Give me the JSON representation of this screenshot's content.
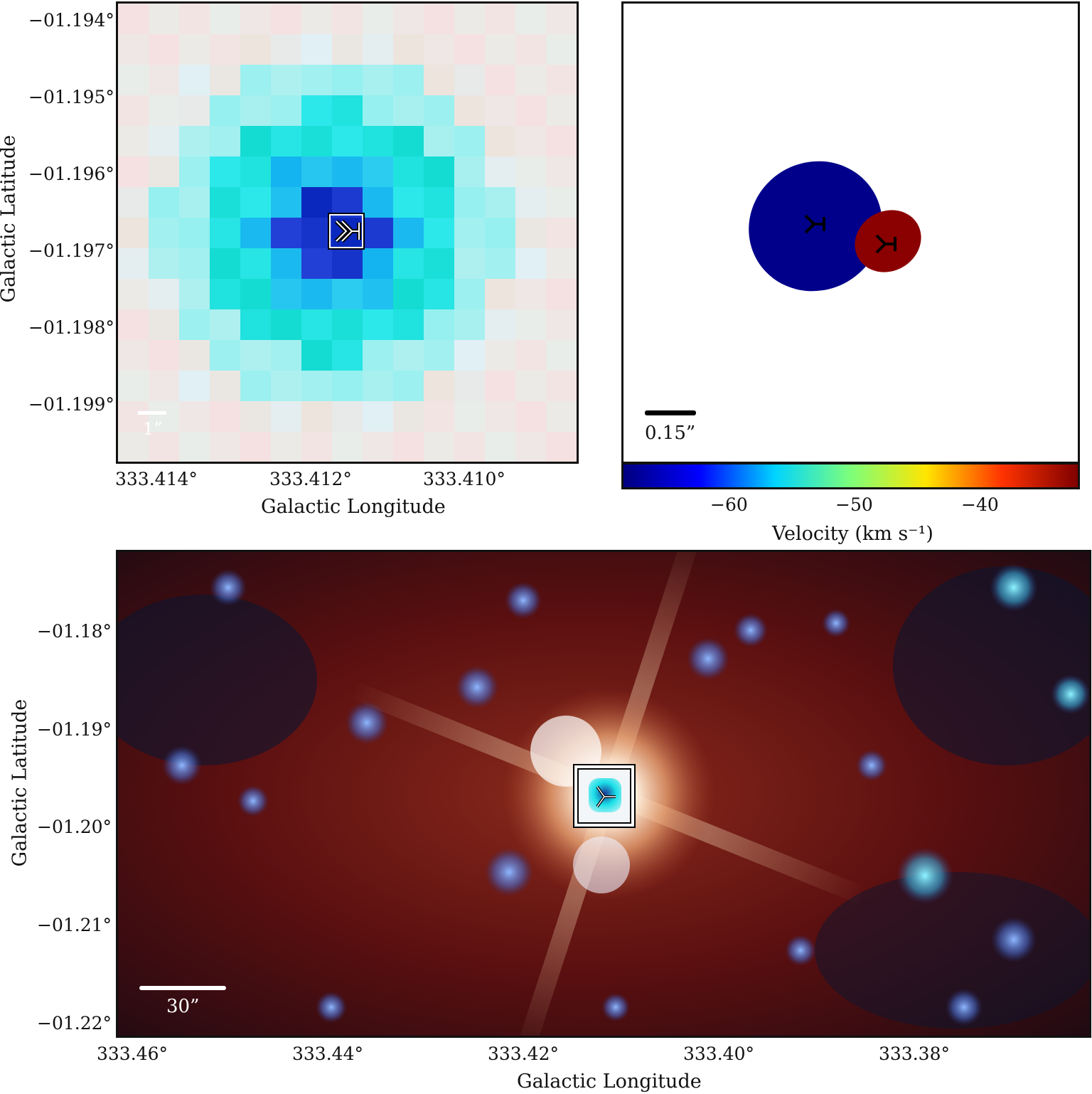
{
  "top_left": {
    "y_ticks": [
      "−01.194°",
      "−01.195°",
      "−01.196°",
      "−01.197°",
      "−01.198°",
      "−01.199°"
    ],
    "x_ticks": [
      "333.414°",
      "333.412°",
      "333.410°"
    ],
    "ylabel": "Galactic Latitude",
    "xlabel": "Galactic Longitude",
    "scale_bar": "1”"
  },
  "top_right": {
    "scale_bar": "0.15”",
    "colorbar": {
      "ticks": [
        "−60",
        "−50",
        "−40"
      ],
      "label": "Velocity (km s⁻¹)",
      "colors": [
        "#00007f",
        "#0000ff",
        "#00d4ff",
        "#7dff7a",
        "#ffe500",
        "#ff3300",
        "#7f0000"
      ]
    },
    "components": [
      {
        "velocity": -68,
        "color": "#00008b"
      },
      {
        "velocity": -37,
        "color": "#8b0000"
      }
    ]
  },
  "bottom": {
    "y_ticks": [
      "−01.18°",
      "−01.19°",
      "−01.20°",
      "−01.21°",
      "−01.22°"
    ],
    "x_ticks": [
      "333.46°",
      "333.44°",
      "333.42°",
      "333.40°",
      "333.38°"
    ],
    "ylabel": "Galactic Latitude",
    "xlabel": "Galactic Longitude",
    "scale_bar": "30”"
  }
}
